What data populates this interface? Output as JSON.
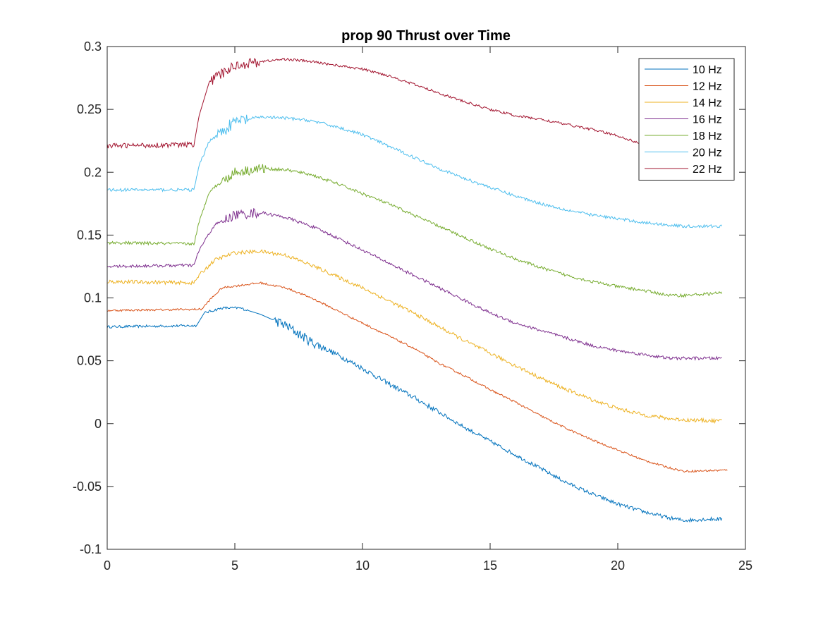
{
  "chart_data": {
    "type": "line",
    "title": "prop 90 Thrust over Time",
    "xlabel": "",
    "ylabel": "",
    "xlim": [
      0,
      25
    ],
    "ylim": [
      -0.1,
      0.3
    ],
    "xticks": [
      "0",
      "5",
      "10",
      "15",
      "20",
      "25"
    ],
    "yticks": [
      "-0.1",
      "-0.05",
      "0",
      "0.05",
      "0.1",
      "0.15",
      "0.2",
      "0.25",
      "0.3"
    ],
    "grid": false,
    "legend_position": "top-right",
    "series": [
      {
        "name": "10 Hz",
        "color": "#0072BD",
        "points": [
          [
            0,
            0.077
          ],
          [
            3.5,
            0.078
          ],
          [
            3.8,
            0.088
          ],
          [
            4.5,
            0.092
          ],
          [
            5.2,
            0.092
          ],
          [
            6,
            0.087
          ],
          [
            7,
            0.078
          ],
          [
            8,
            0.065
          ],
          [
            9,
            0.055
          ],
          [
            10,
            0.044
          ],
          [
            11,
            0.032
          ],
          [
            12,
            0.021
          ],
          [
            13,
            0.009
          ],
          [
            14,
            -0.003
          ],
          [
            15,
            -0.014
          ],
          [
            16,
            -0.025
          ],
          [
            17,
            -0.036
          ],
          [
            18,
            -0.047
          ],
          [
            19,
            -0.056
          ],
          [
            20,
            -0.064
          ],
          [
            21,
            -0.07
          ],
          [
            22,
            -0.075
          ],
          [
            22.6,
            -0.077
          ],
          [
            23.5,
            -0.076
          ],
          [
            24.1,
            -0.076
          ]
        ],
        "noise": [
          [
            6.5,
            8.5,
            0.004
          ],
          [
            3.8,
            5.5,
            0.001
          ],
          [
            8.5,
            13,
            0.002
          ],
          [
            13,
            24.1,
            0.0015
          ],
          [
            0,
            3.5,
            0.001
          ]
        ]
      },
      {
        "name": "12 Hz",
        "color": "#D95319",
        "points": [
          [
            0,
            0.09
          ],
          [
            3.7,
            0.091
          ],
          [
            4.0,
            0.098
          ],
          [
            4.5,
            0.108
          ],
          [
            5.2,
            0.11
          ],
          [
            6,
            0.112
          ],
          [
            7,
            0.108
          ],
          [
            8,
            0.1
          ],
          [
            9,
            0.09
          ],
          [
            10,
            0.08
          ],
          [
            11,
            0.07
          ],
          [
            12,
            0.06
          ],
          [
            13,
            0.048
          ],
          [
            14,
            0.038
          ],
          [
            15,
            0.027
          ],
          [
            16,
            0.017
          ],
          [
            17,
            0.006
          ],
          [
            18,
            -0.004
          ],
          [
            19,
            -0.013
          ],
          [
            20,
            -0.021
          ],
          [
            21,
            -0.029
          ],
          [
            22,
            -0.035
          ],
          [
            22.6,
            -0.038
          ],
          [
            24.3,
            -0.037
          ]
        ],
        "noise": [
          [
            0,
            24.3,
            0.0008
          ]
        ]
      },
      {
        "name": "14 Hz",
        "color": "#EDB120",
        "points": [
          [
            0,
            0.113
          ],
          [
            3.4,
            0.112
          ],
          [
            3.6,
            0.118
          ],
          [
            4.2,
            0.13
          ],
          [
            5,
            0.136
          ],
          [
            6,
            0.137
          ],
          [
            7,
            0.134
          ],
          [
            8,
            0.126
          ],
          [
            9,
            0.117
          ],
          [
            10,
            0.108
          ],
          [
            11,
            0.098
          ],
          [
            12,
            0.088
          ],
          [
            13,
            0.077
          ],
          [
            14,
            0.066
          ],
          [
            15,
            0.056
          ],
          [
            16,
            0.046
          ],
          [
            17,
            0.036
          ],
          [
            18,
            0.027
          ],
          [
            19,
            0.019
          ],
          [
            20,
            0.012
          ],
          [
            21,
            0.007
          ],
          [
            22,
            0.004
          ],
          [
            22.6,
            0.003
          ],
          [
            24.1,
            0.002
          ]
        ],
        "noise": [
          [
            0,
            24.1,
            0.0015
          ]
        ]
      },
      {
        "name": "16 Hz",
        "color": "#7E2F8E",
        "points": [
          [
            0,
            0.125
          ],
          [
            3.4,
            0.126
          ],
          [
            3.6,
            0.138
          ],
          [
            4.2,
            0.158
          ],
          [
            5,
            0.166
          ],
          [
            6,
            0.168
          ],
          [
            7,
            0.164
          ],
          [
            8,
            0.157
          ],
          [
            9,
            0.148
          ],
          [
            10,
            0.138
          ],
          [
            11,
            0.128
          ],
          [
            12,
            0.118
          ],
          [
            13,
            0.108
          ],
          [
            14,
            0.098
          ],
          [
            15,
            0.088
          ],
          [
            16,
            0.08
          ],
          [
            17,
            0.074
          ],
          [
            18,
            0.068
          ],
          [
            19,
            0.062
          ],
          [
            20,
            0.058
          ],
          [
            21,
            0.055
          ],
          [
            22,
            0.052
          ],
          [
            22.6,
            0.052
          ],
          [
            24.1,
            0.052
          ]
        ],
        "noise": [
          [
            4.5,
            6,
            0.004
          ],
          [
            0,
            24.1,
            0.0012
          ]
        ]
      },
      {
        "name": "18 Hz",
        "color": "#77AC30",
        "points": [
          [
            0,
            0.144
          ],
          [
            3.4,
            0.143
          ],
          [
            3.6,
            0.16
          ],
          [
            4.0,
            0.185
          ],
          [
            5,
            0.2
          ],
          [
            6,
            0.203
          ],
          [
            7,
            0.202
          ],
          [
            8,
            0.198
          ],
          [
            9,
            0.191
          ],
          [
            10,
            0.183
          ],
          [
            11,
            0.175
          ],
          [
            12,
            0.166
          ],
          [
            13,
            0.157
          ],
          [
            14,
            0.148
          ],
          [
            15,
            0.139
          ],
          [
            16,
            0.131
          ],
          [
            17,
            0.124
          ],
          [
            18,
            0.118
          ],
          [
            19,
            0.113
          ],
          [
            20,
            0.109
          ],
          [
            21,
            0.106
          ],
          [
            22,
            0.102
          ],
          [
            22.6,
            0.102
          ],
          [
            24.1,
            0.104
          ]
        ],
        "noise": [
          [
            4.5,
            6.2,
            0.004
          ],
          [
            0,
            24.1,
            0.0012
          ]
        ]
      },
      {
        "name": "20 Hz",
        "color": "#4DBEEE",
        "points": [
          [
            0,
            0.186
          ],
          [
            3.4,
            0.186
          ],
          [
            3.6,
            0.205
          ],
          [
            4.0,
            0.225
          ],
          [
            5,
            0.24
          ],
          [
            6,
            0.244
          ],
          [
            7,
            0.243
          ],
          [
            8,
            0.241
          ],
          [
            9,
            0.236
          ],
          [
            10,
            0.23
          ],
          [
            11,
            0.221
          ],
          [
            12,
            0.212
          ],
          [
            13,
            0.203
          ],
          [
            14,
            0.195
          ],
          [
            15,
            0.188
          ],
          [
            16,
            0.181
          ],
          [
            17,
            0.175
          ],
          [
            18,
            0.17
          ],
          [
            19,
            0.166
          ],
          [
            20,
            0.163
          ],
          [
            21,
            0.16
          ],
          [
            22,
            0.158
          ],
          [
            22.6,
            0.157
          ],
          [
            24.1,
            0.157
          ]
        ],
        "noise": [
          [
            4.3,
            5.5,
            0.005
          ],
          [
            0,
            24.1,
            0.0012
          ]
        ]
      },
      {
        "name": "22 Hz",
        "color": "#A2142F",
        "points": [
          [
            0,
            0.221
          ],
          [
            3.4,
            0.222
          ],
          [
            3.6,
            0.245
          ],
          [
            4.0,
            0.272
          ],
          [
            5,
            0.285
          ],
          [
            6,
            0.288
          ],
          [
            7,
            0.29
          ],
          [
            8,
            0.288
          ],
          [
            9,
            0.285
          ],
          [
            10,
            0.282
          ],
          [
            11,
            0.277
          ],
          [
            12,
            0.27
          ],
          [
            13,
            0.263
          ],
          [
            14,
            0.256
          ],
          [
            15,
            0.25
          ],
          [
            16,
            0.245
          ],
          [
            17,
            0.242
          ],
          [
            18,
            0.238
          ],
          [
            19,
            0.234
          ],
          [
            20,
            0.229
          ],
          [
            21,
            0.222
          ],
          [
            21.5,
            0.22
          ]
        ],
        "noise": [
          [
            4,
            6,
            0.004
          ],
          [
            0,
            3.4,
            0.002
          ],
          [
            6,
            21.5,
            0.001
          ]
        ]
      }
    ]
  }
}
